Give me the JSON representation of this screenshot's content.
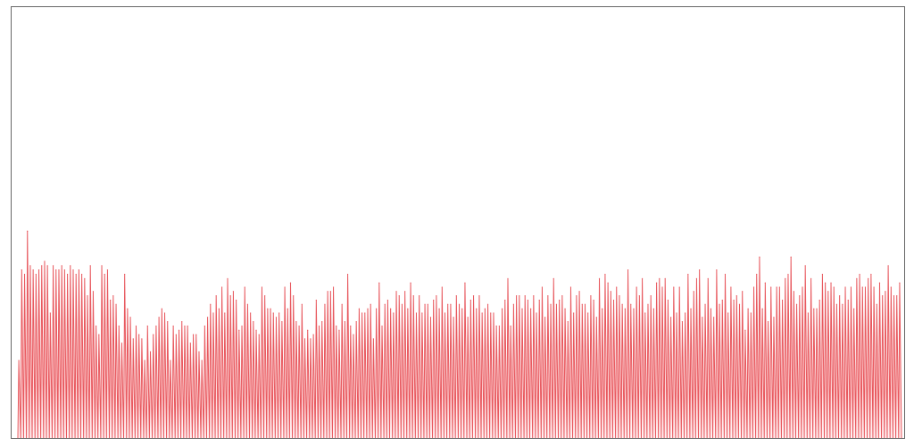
{
  "chart_data": {
    "type": "area",
    "title": "",
    "xlabel": "",
    "ylabel": "",
    "grid": false,
    "legend": "none",
    "colors": {
      "line": "#e8585e",
      "fill_top": "#ff9a9e",
      "fill_bottom": "#fff0f1",
      "frame": "#666666",
      "background": "#ffffff"
    },
    "ylim": [
      0,
      100
    ],
    "series": [
      {
        "values": [
          18,
          39,
          38,
          48,
          40,
          39,
          38,
          39,
          40,
          41,
          40,
          29,
          40,
          39,
          39,
          40,
          39,
          38,
          40,
          39,
          38,
          39,
          38,
          37,
          33,
          40,
          34,
          26,
          24,
          40,
          38,
          39,
          32,
          33,
          31,
          26,
          22,
          38,
          30,
          28,
          23,
          26,
          24,
          23,
          18,
          26,
          20,
          24,
          26,
          28,
          30,
          29,
          27,
          18,
          26,
          24,
          25,
          27,
          26,
          26,
          22,
          24,
          24,
          20,
          18,
          26,
          28,
          31,
          29,
          33,
          30,
          35,
          29,
          37,
          33,
          34,
          32,
          25,
          26,
          35,
          31,
          29,
          27,
          25,
          24,
          35,
          33,
          30,
          30,
          29,
          28,
          29,
          27,
          35,
          30,
          36,
          33,
          27,
          26,
          31,
          23,
          25,
          23,
          24,
          32,
          26,
          27,
          31,
          34,
          34,
          35,
          26,
          25,
          31,
          27,
          38,
          26,
          24,
          27,
          30,
          29,
          29,
          30,
          31,
          23,
          30,
          36,
          26,
          31,
          32,
          30,
          29,
          34,
          33,
          31,
          34,
          30,
          36,
          33,
          29,
          33,
          29,
          31,
          31,
          28,
          32,
          33,
          30,
          35,
          29,
          31,
          31,
          28,
          33,
          31,
          30,
          36,
          28,
          32,
          33,
          30,
          33,
          29,
          30,
          31,
          29,
          29,
          26,
          26,
          30,
          32,
          37,
          26,
          31,
          33,
          33,
          30,
          33,
          32,
          30,
          33,
          29,
          32,
          35,
          28,
          33,
          31,
          37,
          31,
          32,
          33,
          30,
          27,
          35,
          29,
          33,
          34,
          31,
          31,
          29,
          33,
          32,
          28,
          37,
          30,
          38,
          36,
          34,
          32,
          35,
          33,
          31,
          30,
          39,
          31,
          30,
          35,
          33,
          37,
          29,
          31,
          33,
          30,
          36,
          37,
          35,
          37,
          32,
          28,
          35,
          29,
          35,
          27,
          29,
          38,
          30,
          34,
          37,
          39,
          28,
          31,
          37,
          30,
          28,
          39,
          31,
          32,
          38,
          29,
          35,
          32,
          33,
          31,
          34,
          25,
          30,
          29,
          35,
          38,
          42,
          30,
          36,
          27,
          35,
          28,
          35,
          35,
          32,
          37,
          38,
          42,
          34,
          31,
          33,
          35,
          40,
          29,
          37,
          30,
          30,
          32,
          38,
          36,
          34,
          36,
          35,
          31,
          33,
          31,
          35,
          32,
          35,
          30,
          37,
          38,
          35,
          35,
          37,
          38,
          35,
          31,
          36,
          33,
          34,
          40,
          35,
          33,
          33,
          36
        ]
      }
    ]
  }
}
